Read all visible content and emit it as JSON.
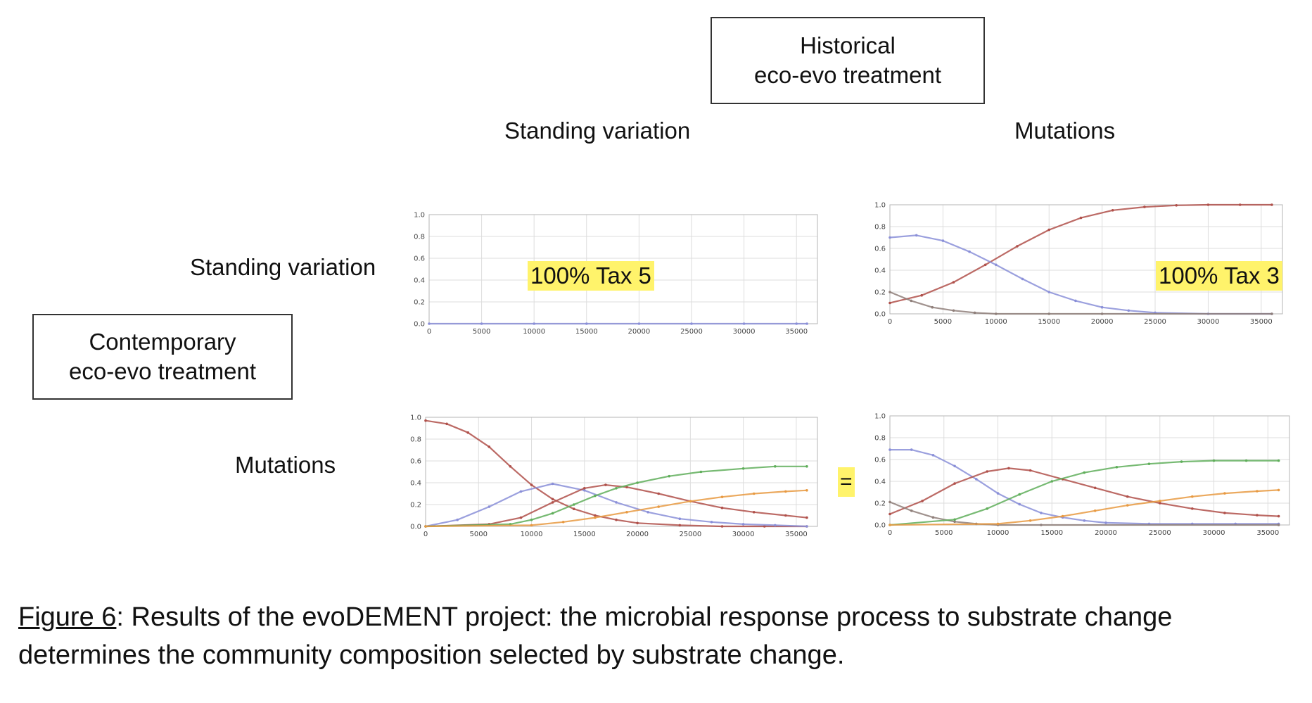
{
  "header": {
    "historical_box": [
      "Historical",
      "eco-evo treatment"
    ],
    "col_standing": "Standing variation",
    "col_mutations": "Mutations"
  },
  "side": {
    "row_standing": "Standing variation",
    "row_mutations": "Mutations",
    "contemporary_box": [
      "Contemporary",
      "eco-evo treatment"
    ]
  },
  "annotations": {
    "tl": "100% Tax 5",
    "tr": "100% Tax 3",
    "equals": "="
  },
  "caption": {
    "figure_label": "Figure 6",
    "text": ": Results of the evoDEMENT project: the microbial response process to substrate change determines the community composition selected by substrate change."
  },
  "colors": {
    "blue": "#8a8fd8",
    "red": "#b0504a",
    "green": "#5fae5a",
    "orange": "#e89a42",
    "grid": "#dddddd"
  },
  "chart_data": [
    {
      "type": "line",
      "panel": "top-left",
      "xlim": [
        0,
        37000
      ],
      "ylim": [
        0,
        1
      ],
      "xticks": [
        "0",
        "5000",
        "10000",
        "15000",
        "20000",
        "25000",
        "30000",
        "35000"
      ],
      "yticks": [
        "0.0",
        "0.2",
        "0.4",
        "0.6",
        "0.8",
        "1.0"
      ],
      "grid": true,
      "series": [
        {
          "color": "blue",
          "x": [
            0,
            5000,
            10000,
            15000,
            20000,
            25000,
            30000,
            35000,
            36000
          ],
          "y": [
            0,
            0,
            0,
            0,
            0,
            0,
            0,
            0,
            0
          ]
        }
      ]
    },
    {
      "type": "line",
      "panel": "top-right",
      "xlim": [
        0,
        37000
      ],
      "ylim": [
        0,
        1
      ],
      "xticks": [
        "0",
        "5000",
        "10000",
        "15000",
        "20000",
        "25000",
        "30000",
        "35000"
      ],
      "yticks": [
        "0.0",
        "0.2",
        "0.4",
        "0.6",
        "0.8",
        "1.0"
      ],
      "grid": true,
      "series": [
        {
          "color": "red",
          "x": [
            0,
            3000,
            6000,
            9000,
            12000,
            15000,
            18000,
            21000,
            24000,
            27000,
            30000,
            33000,
            36000
          ],
          "y": [
            0.1,
            0.17,
            0.29,
            0.45,
            0.62,
            0.77,
            0.88,
            0.95,
            0.98,
            0.995,
            1.0,
            1.0,
            1.0
          ]
        },
        {
          "color": "blue",
          "x": [
            0,
            2500,
            5000,
            7500,
            10000,
            12500,
            15000,
            17500,
            20000,
            22500,
            25000,
            30000,
            36000
          ],
          "y": [
            0.7,
            0.72,
            0.67,
            0.57,
            0.45,
            0.32,
            0.2,
            0.12,
            0.06,
            0.03,
            0.01,
            0.0,
            0.0
          ]
        },
        {
          "color": "gray",
          "x": [
            0,
            2000,
            4000,
            6000,
            8000,
            10000,
            15000,
            20000,
            36000
          ],
          "y": [
            0.2,
            0.12,
            0.06,
            0.03,
            0.01,
            0.0,
            0.0,
            0.0,
            0.0
          ]
        }
      ]
    },
    {
      "type": "line",
      "panel": "bottom-left",
      "xlim": [
        0,
        37000
      ],
      "ylim": [
        0,
        1
      ],
      "xticks": [
        "0",
        "5000",
        "10000",
        "15000",
        "20000",
        "25000",
        "30000",
        "35000"
      ],
      "yticks": [
        "0.0",
        "0.2",
        "0.4",
        "0.6",
        "0.8",
        "1.0"
      ],
      "grid": true,
      "series": [
        {
          "color": "red",
          "x": [
            0,
            2000,
            4000,
            6000,
            8000,
            10000,
            12000,
            14000,
            16000,
            18000,
            20000,
            24000,
            28000,
            32000,
            36000
          ],
          "y": [
            0.97,
            0.94,
            0.86,
            0.73,
            0.55,
            0.38,
            0.25,
            0.16,
            0.1,
            0.06,
            0.03,
            0.01,
            0.0,
            0.0,
            0.0
          ]
        },
        {
          "color": "blue",
          "x": [
            0,
            3000,
            6000,
            9000,
            12000,
            15000,
            18000,
            21000,
            24000,
            27000,
            30000,
            33000,
            36000
          ],
          "y": [
            0.0,
            0.06,
            0.18,
            0.32,
            0.39,
            0.33,
            0.22,
            0.13,
            0.07,
            0.04,
            0.02,
            0.01,
            0.0
          ]
        },
        {
          "color": "red",
          "x": [
            0,
            6000,
            9000,
            12000,
            15000,
            17000,
            19000,
            22000,
            25000,
            28000,
            31000,
            34000,
            36000
          ],
          "y": [
            0.0,
            0.02,
            0.08,
            0.22,
            0.35,
            0.38,
            0.36,
            0.3,
            0.23,
            0.17,
            0.13,
            0.1,
            0.08
          ]
        },
        {
          "color": "green",
          "x": [
            0,
            8000,
            10000,
            12000,
            14000,
            16000,
            18000,
            20000,
            23000,
            26000,
            30000,
            33000,
            36000
          ],
          "y": [
            0.0,
            0.02,
            0.06,
            0.12,
            0.2,
            0.28,
            0.35,
            0.4,
            0.46,
            0.5,
            0.53,
            0.55,
            0.55
          ]
        },
        {
          "color": "orange",
          "x": [
            0,
            10000,
            13000,
            16000,
            19000,
            22000,
            25000,
            28000,
            31000,
            34000,
            36000
          ],
          "y": [
            0.0,
            0.01,
            0.04,
            0.08,
            0.13,
            0.18,
            0.23,
            0.27,
            0.3,
            0.32,
            0.33
          ]
        }
      ]
    },
    {
      "type": "line",
      "panel": "bottom-right",
      "xlim": [
        0,
        37000
      ],
      "ylim": [
        0,
        1
      ],
      "xticks": [
        "0",
        "5000",
        "10000",
        "15000",
        "20000",
        "25000",
        "30000",
        "35000"
      ],
      "yticks": [
        "0.0",
        "0.2",
        "0.4",
        "0.6",
        "0.8",
        "1.0"
      ],
      "grid": true,
      "series": [
        {
          "color": "blue",
          "x": [
            0,
            2000,
            4000,
            6000,
            8000,
            10000,
            12000,
            14000,
            16000,
            18000,
            20000,
            24000,
            28000,
            32000,
            36000
          ],
          "y": [
            0.69,
            0.69,
            0.64,
            0.54,
            0.42,
            0.29,
            0.19,
            0.11,
            0.07,
            0.04,
            0.02,
            0.01,
            0.01,
            0.01,
            0.01
          ]
        },
        {
          "color": "red",
          "x": [
            0,
            3000,
            6000,
            9000,
            11000,
            13000,
            16000,
            19000,
            22000,
            25000,
            28000,
            31000,
            34000,
            36000
          ],
          "y": [
            0.1,
            0.22,
            0.38,
            0.49,
            0.52,
            0.5,
            0.42,
            0.34,
            0.26,
            0.2,
            0.15,
            0.11,
            0.09,
            0.08
          ]
        },
        {
          "color": "gray",
          "x": [
            0,
            2000,
            4000,
            6000,
            8000,
            10000,
            14000,
            36000
          ],
          "y": [
            0.21,
            0.13,
            0.07,
            0.03,
            0.01,
            0.0,
            0.0,
            0.0
          ]
        },
        {
          "color": "green",
          "x": [
            0,
            6000,
            9000,
            12000,
            15000,
            18000,
            21000,
            24000,
            27000,
            30000,
            33000,
            36000
          ],
          "y": [
            0.0,
            0.05,
            0.15,
            0.28,
            0.4,
            0.48,
            0.53,
            0.56,
            0.58,
            0.59,
            0.59,
            0.59
          ]
        },
        {
          "color": "orange",
          "x": [
            0,
            10000,
            13000,
            16000,
            19000,
            22000,
            25000,
            28000,
            31000,
            34000,
            36000
          ],
          "y": [
            0.0,
            0.01,
            0.04,
            0.08,
            0.13,
            0.18,
            0.22,
            0.26,
            0.29,
            0.31,
            0.32
          ]
        }
      ]
    }
  ]
}
